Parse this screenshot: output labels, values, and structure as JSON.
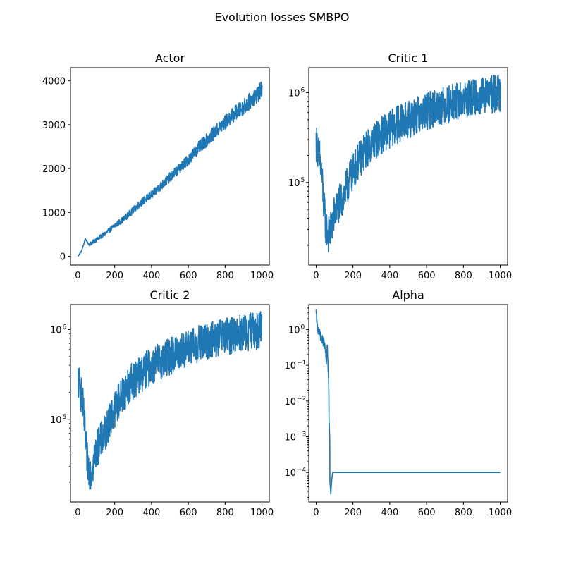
{
  "figure": {
    "title": "Evolution losses SMBPO"
  },
  "chart_data": [
    {
      "type": "line",
      "title": "Actor",
      "xlabel": "",
      "ylabel": "",
      "xlim": [
        -40,
        1040
      ],
      "ylim": [
        -200,
        4300
      ],
      "yscale": "linear",
      "xticks": [
        0,
        200,
        400,
        600,
        800,
        1000
      ],
      "yticks": [
        0,
        1000,
        2000,
        3000,
        4000
      ],
      "grid": false,
      "color": "#1f77b4",
      "series": [
        {
          "values_description": "noisy rising trend",
          "x": [
            0,
            10,
            20,
            30,
            40,
            50,
            60,
            80,
            100,
            150,
            200,
            250,
            300,
            350,
            400,
            450,
            500,
            550,
            600,
            650,
            700,
            750,
            800,
            850,
            900,
            950,
            1000
          ],
          "y": [
            0,
            60,
            120,
            250,
            400,
            330,
            270,
            320,
            380,
            520,
            700,
            850,
            1050,
            1250,
            1400,
            1600,
            1800,
            2000,
            2200,
            2450,
            2650,
            2850,
            3050,
            3250,
            3400,
            3600,
            3800
          ]
        }
      ]
    },
    {
      "type": "line",
      "title": "Critic 1",
      "xlabel": "",
      "ylabel": "",
      "xlim": [
        -40,
        1040
      ],
      "ylim": [
        12000,
        1900000
      ],
      "yscale": "log",
      "xticks": [
        0,
        200,
        400,
        600,
        800,
        1000
      ],
      "yticks": [
        100000,
        1000000
      ],
      "ytick_labels": [
        {
          "base": "10",
          "exp": "5"
        },
        {
          "base": "10",
          "exp": "6"
        }
      ],
      "grid": false,
      "color": "#1f77b4",
      "series": [
        {
          "x": [
            0,
            10,
            20,
            30,
            40,
            50,
            60,
            70,
            80,
            100,
            150,
            200,
            250,
            300,
            350,
            400,
            450,
            500,
            550,
            600,
            650,
            700,
            750,
            800,
            850,
            900,
            950,
            1000
          ],
          "y": [
            280000,
            230000,
            180000,
            120000,
            60000,
            35000,
            28000,
            26000,
            30000,
            45000,
            70000,
            130000,
            200000,
            270000,
            330000,
            390000,
            450000,
            500000,
            560000,
            620000,
            680000,
            730000,
            780000,
            830000,
            870000,
            920000,
            960000,
            1000000
          ]
        }
      ]
    },
    {
      "type": "line",
      "title": "Critic 2",
      "xlabel": "",
      "ylabel": "",
      "xlim": [
        -40,
        1040
      ],
      "ylim": [
        12000,
        1900000
      ],
      "yscale": "log",
      "xticks": [
        0,
        200,
        400,
        600,
        800,
        1000
      ],
      "yticks": [
        100000,
        1000000
      ],
      "ytick_labels": [
        {
          "base": "10",
          "exp": "5"
        },
        {
          "base": "10",
          "exp": "6"
        }
      ],
      "grid": false,
      "color": "#1f77b4",
      "series": [
        {
          "x": [
            0,
            10,
            20,
            30,
            40,
            50,
            60,
            70,
            80,
            100,
            150,
            200,
            250,
            300,
            350,
            400,
            450,
            500,
            550,
            600,
            650,
            700,
            750,
            800,
            850,
            900,
            950,
            1000
          ],
          "y": [
            280000,
            230000,
            180000,
            120000,
            60000,
            35000,
            28000,
            26000,
            30000,
            45000,
            70000,
            130000,
            200000,
            270000,
            330000,
            390000,
            450000,
            500000,
            560000,
            620000,
            680000,
            730000,
            780000,
            830000,
            870000,
            920000,
            960000,
            1000000
          ]
        }
      ]
    },
    {
      "type": "line",
      "title": "Alpha",
      "xlabel": "",
      "ylabel": "",
      "xlim": [
        -40,
        1040
      ],
      "ylim": [
        1.5e-05,
        5
      ],
      "yscale": "log",
      "xticks": [
        0,
        200,
        400,
        600,
        800,
        1000
      ],
      "yticks": [
        0.0001,
        0.001,
        0.01,
        0.1,
        1
      ],
      "ytick_labels": [
        {
          "base": "10",
          "exp": "−4"
        },
        {
          "base": "10",
          "exp": "−3"
        },
        {
          "base": "10",
          "exp": "−2"
        },
        {
          "base": "10",
          "exp": "−1"
        },
        {
          "base": "10",
          "exp": "0"
        }
      ],
      "grid": false,
      "color": "#1f77b4",
      "series": [
        {
          "x": [
            0,
            5,
            10,
            20,
            30,
            40,
            50,
            55,
            60,
            65,
            70,
            75,
            80,
            90,
            100,
            200,
            400,
            600,
            800,
            1000
          ],
          "y": [
            3.0,
            1.3,
            1.0,
            0.75,
            0.55,
            0.45,
            0.28,
            0.1,
            0.3,
            0.08,
            0.003,
            5e-05,
            2.5e-05,
            0.0001,
            0.0001,
            0.0001,
            0.0001,
            0.0001,
            0.0001,
            0.0001
          ]
        }
      ]
    }
  ]
}
